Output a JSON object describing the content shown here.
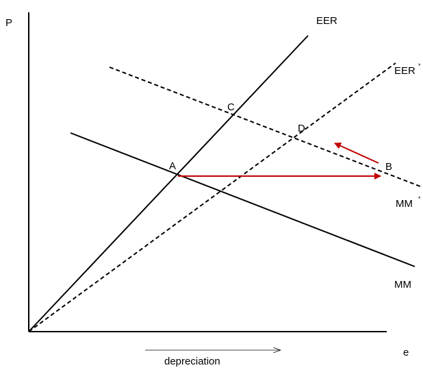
{
  "axes": {
    "y_label": "P",
    "x_label": "e"
  },
  "curves": {
    "eer": "EER",
    "eer_star": "EER",
    "eer_star_sup": "*",
    "mm": "MM",
    "mm_star": "MM",
    "mm_star_sup": "*"
  },
  "points": {
    "a": "A",
    "b": "B",
    "c": "C",
    "d": "D"
  },
  "annotation": {
    "depreciation": "depreciation"
  },
  "colors": {
    "line": "#000000",
    "arrow": "#c00000"
  }
}
